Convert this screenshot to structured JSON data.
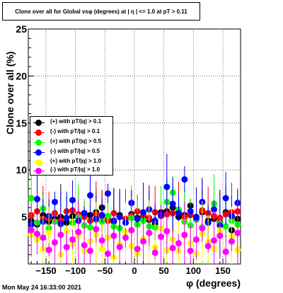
{
  "title": "Clone  over all for Global vsφ (degrees) at | η | <= 1.0 at pT > 0.11",
  "datestamp": "Mon May 24 16:33:00 2021",
  "chart_data": {
    "type": "scatter",
    "title": "Clone  over all for Global vsφ (degrees) at | η | <= 1.0 at pT > 0.11",
    "xlabel": "φ (degrees)",
    "ylabel": "Clone  over all (%)",
    "xlim": [
      -180,
      180
    ],
    "ylim": [
      0,
      25
    ],
    "xticks": [
      -150,
      -100,
      -50,
      0,
      50,
      100,
      150
    ],
    "xtick_labels": [
      "−150",
      "−100",
      "−50",
      "0",
      "50",
      "100",
      "150"
    ],
    "yticks": [
      5,
      10,
      15,
      20,
      25
    ],
    "ytick_labels": [
      "5",
      "10",
      "15",
      "20",
      "25"
    ],
    "grid": true,
    "legend_position": "middle-left",
    "colors": [
      "#000000",
      "#ff0000",
      "#00ff00",
      "#0000ff",
      "#ffff00",
      "#ff00ff"
    ],
    "series": [
      {
        "name": "(+) with pT/|q| > 0.1",
        "color": "#000000",
        "x": [
          -175,
          -165,
          -155,
          -145,
          -135,
          -125,
          -115,
          -105,
          -95,
          -85,
          -75,
          -65,
          -55,
          -45,
          -35,
          -25,
          -15,
          -5,
          5,
          15,
          25,
          35,
          45,
          55,
          65,
          75,
          85,
          95,
          105,
          115,
          125,
          135,
          145,
          155,
          165,
          175
        ],
        "y": [
          4.6,
          4.2,
          5.2,
          4.5,
          4.8,
          5.0,
          4.4,
          5.1,
          4.6,
          5.4,
          5.2,
          5.5,
          6.0,
          4.8,
          4.5,
          5.2,
          4.4,
          5.3,
          4.9,
          5.1,
          4.7,
          4.3,
          5.5,
          5.6,
          6.0,
          5.0,
          5.2,
          6.2,
          5.0,
          5.5,
          4.6,
          4.8,
          4.4,
          5.5,
          3.6,
          4.8
        ]
      },
      {
        "name": "(-) with pT/|q| > 0.1",
        "color": "#ff0000",
        "x": [
          -175,
          -165,
          -155,
          -145,
          -135,
          -125,
          -115,
          -105,
          -95,
          -85,
          -75,
          -65,
          -55,
          -45,
          -35,
          -25,
          -15,
          -5,
          5,
          15,
          25,
          35,
          45,
          55,
          65,
          75,
          85,
          95,
          105,
          115,
          125,
          135,
          145,
          155,
          165,
          175
        ],
        "y": [
          5.2,
          5.6,
          4.8,
          4.9,
          5.4,
          4.6,
          5.6,
          5.7,
          5.3,
          5.0,
          4.6,
          5.3,
          5.1,
          4.6,
          5.4,
          5.0,
          4.8,
          5.1,
          5.6,
          5.2,
          4.9,
          5.5,
          5.1,
          5.3,
          5.4,
          5.6,
          5.0,
          5.2,
          4.8,
          5.7,
          5.4,
          5.1,
          4.9,
          5.3,
          5.5,
          5.6
        ]
      },
      {
        "name": "(+) with pT/|q| > 0.5",
        "color": "#00ff00",
        "x": [
          -175,
          -165,
          -155,
          -145,
          -135,
          -125,
          -115,
          -105,
          -95,
          -85,
          -75,
          -65,
          -55,
          -45,
          -35,
          -25,
          -15,
          -5,
          5,
          15,
          25,
          35,
          45,
          55,
          65,
          75,
          85,
          95,
          105,
          115,
          125,
          135,
          145,
          155,
          165,
          175
        ],
        "y": [
          7.0,
          4.4,
          5.9,
          3.8,
          4.5,
          4.2,
          4.9,
          4.4,
          5.0,
          4.1,
          3.9,
          4.7,
          4.5,
          5.1,
          4.0,
          3.8,
          4.4,
          4.9,
          4.2,
          4.6,
          4.0,
          3.9,
          5.2,
          6.6,
          7.6,
          5.8,
          4.5,
          4.1,
          4.7,
          3.9,
          4.4,
          6.4,
          4.3,
          4.0,
          4.6,
          4.2
        ]
      },
      {
        "name": "(-) with pT/|q| > 0.5",
        "color": "#0000ff",
        "x": [
          -175,
          -165,
          -155,
          -145,
          -135,
          -125,
          -115,
          -105,
          -95,
          -85,
          -75,
          -65,
          -55,
          -45,
          -35,
          -25,
          -15,
          -5,
          5,
          15,
          25,
          35,
          45,
          55,
          65,
          75,
          85,
          95,
          105,
          115,
          125,
          135,
          145,
          155,
          165,
          175
        ],
        "y": [
          4.2,
          6.9,
          4.5,
          5.1,
          6.6,
          4.3,
          4.9,
          6.8,
          4.6,
          5.4,
          7.3,
          4.8,
          5.2,
          7.5,
          4.6,
          5.0,
          4.4,
          6.5,
          4.8,
          5.5,
          5.8,
          4.6,
          5.2,
          8.2,
          6.4,
          5.4,
          9.0,
          5.6,
          4.9,
          6.6,
          4.4,
          5.8,
          4.1,
          7.0,
          5.1,
          6.5
        ]
      },
      {
        "name": "(+) with pT/|q| > 1.0",
        "color": "#ffff00",
        "x": [
          -175,
          -165,
          -155,
          -145,
          -135,
          -125,
          -115,
          -105,
          -95,
          -85,
          -75,
          -65,
          -55,
          -45,
          -35,
          -25,
          -15,
          -5,
          5,
          15,
          25,
          35,
          45,
          55,
          65,
          75,
          85,
          95,
          105,
          115,
          125,
          135,
          145,
          155,
          165,
          175
        ],
        "y": [
          3.1,
          2.6,
          1.6,
          3.3,
          2.2,
          1.0,
          3.5,
          2.1,
          3.0,
          1.4,
          2.4,
          3.1,
          1.6,
          2.8,
          0.7,
          2.1,
          3.4,
          1.9,
          1.1,
          2.7,
          3.3,
          1.8,
          3.8,
          1.5,
          2.6,
          1.4,
          3.0,
          2.2,
          1.1,
          3.2,
          2.4,
          1.6,
          3.6,
          1.3,
          2.9,
          1.5
        ]
      },
      {
        "name": "(-) with pT/|q| > 1.0",
        "color": "#ff00ff",
        "x": [
          -175,
          -165,
          -155,
          -145,
          -135,
          -125,
          -115,
          -105,
          -95,
          -85,
          -75,
          -65,
          -55,
          -45,
          -35,
          -25,
          -15,
          -5,
          5,
          15,
          25,
          35,
          45,
          55,
          65,
          75,
          85,
          95,
          105,
          115,
          125,
          135,
          145,
          155,
          165,
          175
        ],
        "y": [
          3.6,
          3.2,
          2.8,
          1.5,
          2.3,
          3.1,
          1.8,
          2.6,
          3.4,
          2.0,
          1.4,
          3.7,
          2.5,
          1.1,
          3.0,
          1.8,
          2.8,
          3.6,
          1.6,
          2.4,
          3.3,
          1.2,
          2.9,
          3.5,
          1.7,
          2.2,
          3.1,
          1.4,
          2.6,
          3.8,
          1.9,
          2.5,
          3.0,
          1.3,
          2.4,
          3.3
        ]
      }
    ]
  }
}
